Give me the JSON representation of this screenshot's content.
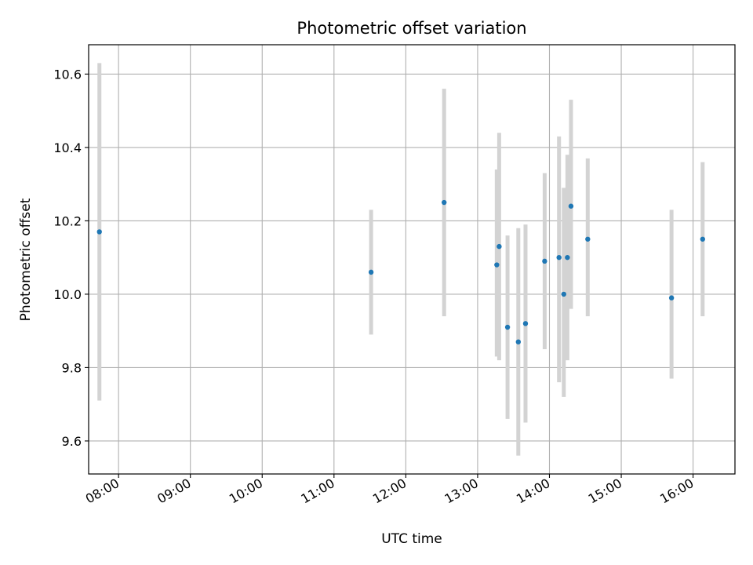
{
  "chart_data": {
    "type": "scatter",
    "title": "Photometric offset variation",
    "xlabel": "UTC time",
    "ylabel": "Photometric offset",
    "grid": true,
    "xlim": [
      "07:35",
      "16:35"
    ],
    "ylim": [
      9.51,
      10.68
    ],
    "x_ticks": [
      "08:00",
      "09:00",
      "10:00",
      "11:00",
      "12:00",
      "13:00",
      "14:00",
      "15:00",
      "16:00"
    ],
    "y_ticks": [
      "9.6",
      "9.8",
      "10.0",
      "10.2",
      "10.4",
      "10.6"
    ],
    "point_color": "#1f77b4",
    "errorbar_color": "#d3d3d3",
    "points": [
      {
        "x": "07:44",
        "y": 10.17,
        "err_low": 9.71,
        "err_high": 10.63
      },
      {
        "x": "11:31",
        "y": 10.06,
        "err_low": 9.89,
        "err_high": 10.23
      },
      {
        "x": "12:32",
        "y": 10.25,
        "err_low": 9.94,
        "err_high": 10.56
      },
      {
        "x": "13:16",
        "y": 10.08,
        "err_low": 9.83,
        "err_high": 10.34
      },
      {
        "x": "13:18",
        "y": 10.13,
        "err_low": 9.82,
        "err_high": 10.44
      },
      {
        "x": "13:25",
        "y": 9.91,
        "err_low": 9.66,
        "err_high": 10.16
      },
      {
        "x": "13:34",
        "y": 9.87,
        "err_low": 9.56,
        "err_high": 10.18
      },
      {
        "x": "13:40",
        "y": 9.92,
        "err_low": 9.65,
        "err_high": 10.19
      },
      {
        "x": "13:56",
        "y": 10.09,
        "err_low": 9.85,
        "err_high": 10.33
      },
      {
        "x": "14:08",
        "y": 10.1,
        "err_low": 9.76,
        "err_high": 10.43
      },
      {
        "x": "14:12",
        "y": 10.0,
        "err_low": 9.72,
        "err_high": 10.29
      },
      {
        "x": "14:15",
        "y": 10.1,
        "err_low": 9.82,
        "err_high": 10.38
      },
      {
        "x": "14:18",
        "y": 10.24,
        "err_low": 9.96,
        "err_high": 10.53
      },
      {
        "x": "14:32",
        "y": 10.15,
        "err_low": 9.94,
        "err_high": 10.37
      },
      {
        "x": "15:42",
        "y": 9.99,
        "err_low": 9.77,
        "err_high": 10.23
      },
      {
        "x": "16:08",
        "y": 10.15,
        "err_low": 9.94,
        "err_high": 10.36
      }
    ]
  }
}
